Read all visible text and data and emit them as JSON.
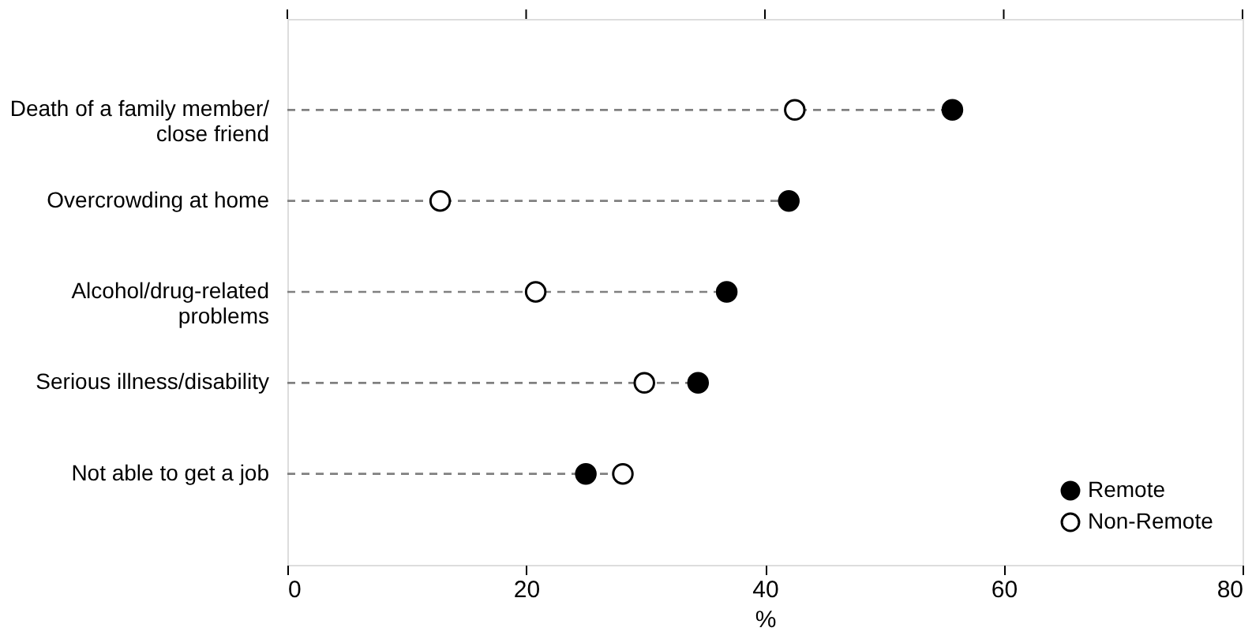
{
  "chart_data": {
    "type": "lollipop",
    "orientation": "horizontal",
    "line_style": "dashed",
    "marker": "circle",
    "categories": [
      "Death of a family member/ close friend",
      "Overcrowding at home",
      "Alcohol/drug-related problems",
      "Serious illness/disability",
      "Not able to get a job"
    ],
    "series": [
      {
        "name": "Remote",
        "color": "#000000",
        "values": [
          55.7,
          42.0,
          36.8,
          34.4,
          25.0
        ]
      },
      {
        "name": "Non-Remote",
        "color": "#ffffff",
        "values": [
          42.5,
          12.8,
          20.8,
          29.9,
          28.1
        ]
      }
    ],
    "xlabel": "%",
    "xlim": [
      0,
      80
    ],
    "xticks": [
      0,
      20,
      40,
      60,
      80
    ],
    "grid": false,
    "legend": "bottom right"
  }
}
